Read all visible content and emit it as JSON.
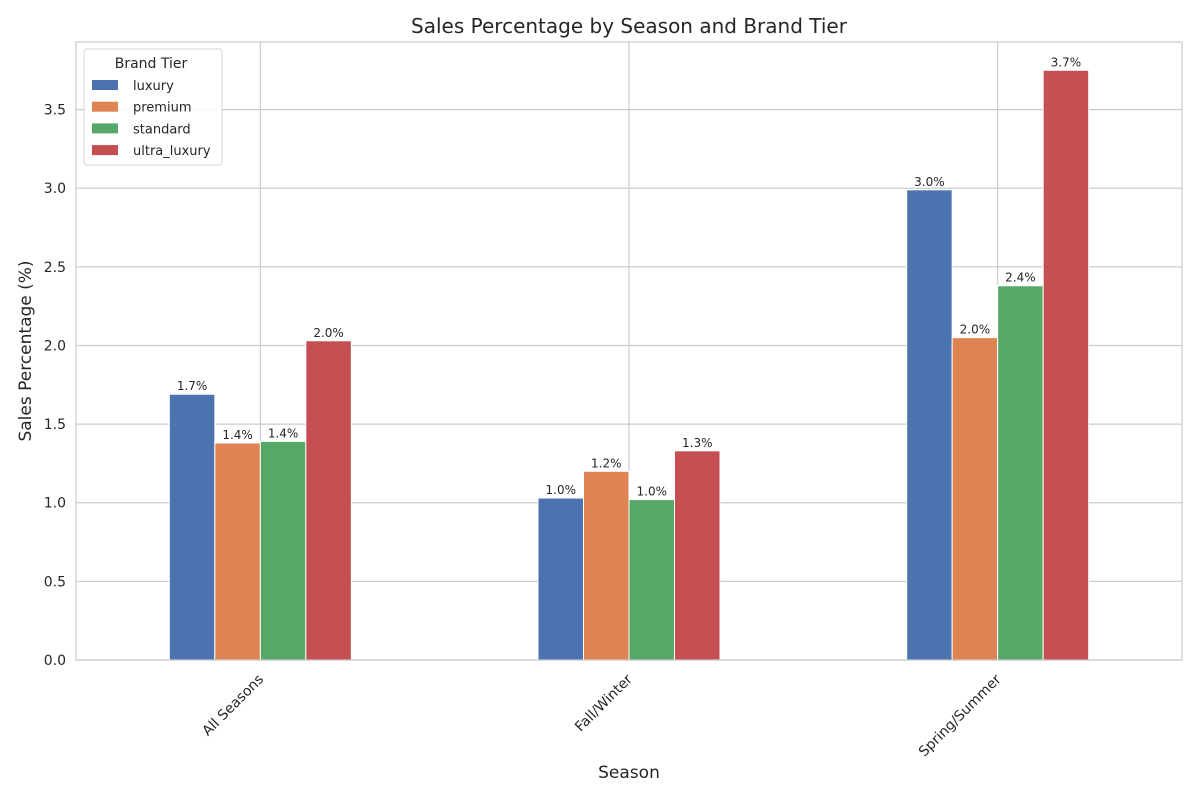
{
  "chart_data": {
    "type": "bar",
    "title": "Sales Percentage by Season and Brand Tier",
    "xlabel": "Season",
    "ylabel": "Sales Percentage (%)",
    "categories": [
      "All Seasons",
      "Fall/Winter",
      "Spring/Summer"
    ],
    "ylim": [
      0,
      3.93
    ],
    "yticks": [
      "0.0",
      "0.5",
      "1.0",
      "1.5",
      "2.0",
      "2.5",
      "3.0",
      "3.5"
    ],
    "grid": true,
    "legend": {
      "title": "Brand Tier",
      "placement": "top-left"
    },
    "series": [
      {
        "name": "luxury",
        "color": "#4c72b0",
        "values": [
          1.69,
          1.03,
          2.99
        ],
        "labels": [
          "1.7%",
          "1.0%",
          "3.0%"
        ]
      },
      {
        "name": "premium",
        "color": "#dd8452",
        "values": [
          1.38,
          1.2,
          2.05
        ],
        "labels": [
          "1.4%",
          "1.2%",
          "2.0%"
        ]
      },
      {
        "name": "standard",
        "color": "#55a868",
        "values": [
          1.39,
          1.02,
          2.38
        ],
        "labels": [
          "1.4%",
          "1.0%",
          "2.4%"
        ]
      },
      {
        "name": "ultra_luxury",
        "color": "#c44e52",
        "values": [
          2.03,
          1.33,
          3.75
        ],
        "labels": [
          "2.0%",
          "1.3%",
          "3.7%"
        ]
      }
    ]
  }
}
